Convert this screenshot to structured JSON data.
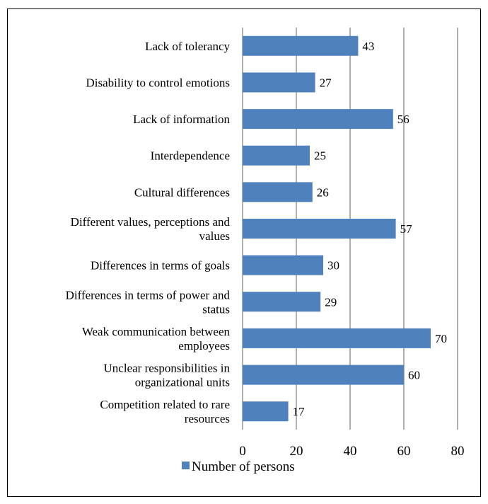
{
  "chart_data": {
    "type": "bar",
    "orientation": "horizontal",
    "categories": [
      [
        "Lack of tolerancy"
      ],
      [
        "Disability to control emotions"
      ],
      [
        "Lack of information"
      ],
      [
        "Interdependence"
      ],
      [
        "Cultural differences"
      ],
      [
        "Different values, perceptions and",
        "values"
      ],
      [
        "Differences in terms of goals"
      ],
      [
        "Differences in terms of power and",
        "status"
      ],
      [
        "Weak communication between",
        "employees"
      ],
      [
        "Unclear responsibilities in",
        "organizational units"
      ],
      [
        "Competition related to rare",
        "resources"
      ]
    ],
    "series": [
      {
        "name": "Number of persons",
        "values": [
          43,
          27,
          56,
          25,
          26,
          57,
          30,
          29,
          70,
          60,
          17
        ]
      }
    ],
    "xlim": [
      0,
      80
    ],
    "xticks": [
      0,
      20,
      40,
      60,
      80
    ],
    "grid": true,
    "legend_position": "bottom",
    "colors": {
      "bar": "#4F81BD",
      "grid": "#868686",
      "text": "#000000"
    }
  }
}
